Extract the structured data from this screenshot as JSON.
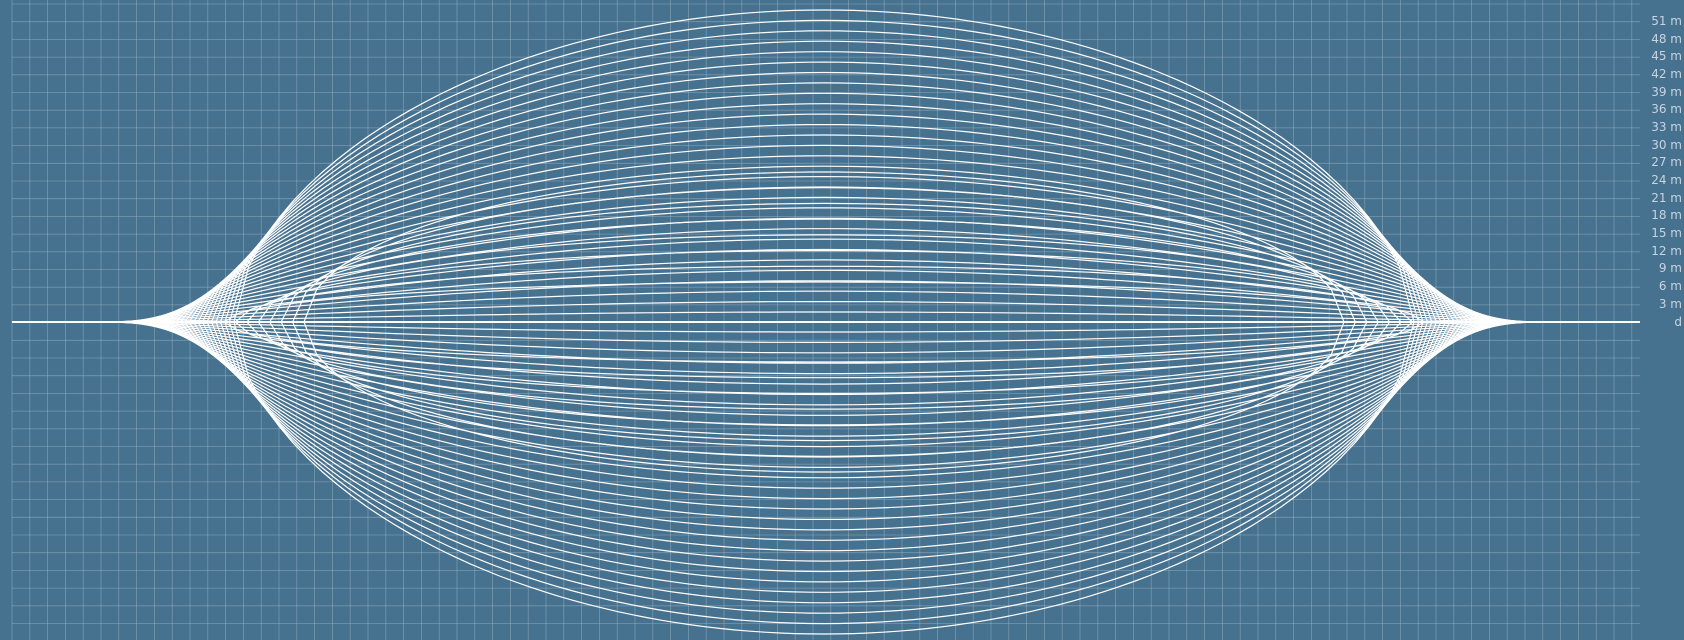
{
  "diagram": {
    "colors": {
      "background": "#46718f",
      "grid_line": "#9fb6c9",
      "curve": "#ffffff",
      "label": "#c8d4df"
    },
    "scale_labels": [
      "51 m",
      "48 m",
      "45 m",
      "42 m",
      "39 m",
      "36 m",
      "33 m",
      "30 m",
      "27 m",
      "24 m",
      "21 m",
      "18 m",
      "15 m",
      "12 m",
      "9 m",
      "6 m",
      "3 m",
      "d"
    ]
  }
}
